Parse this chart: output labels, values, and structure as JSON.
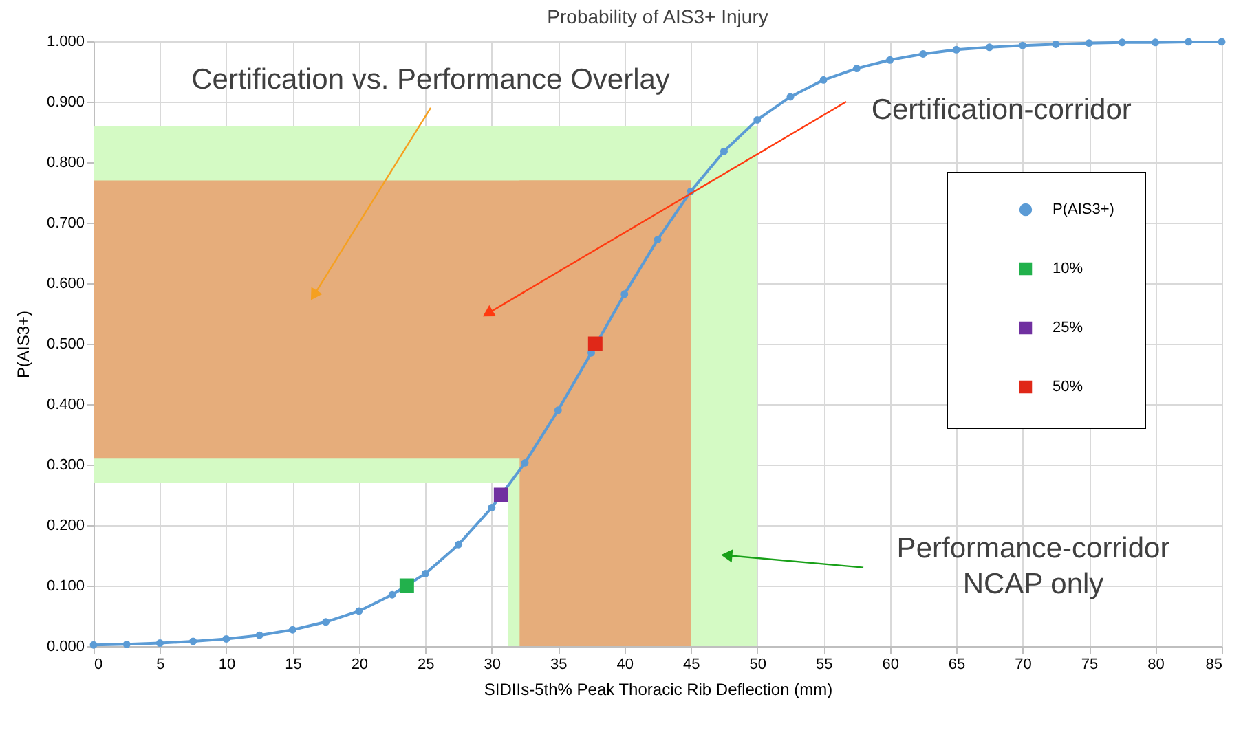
{
  "chart_data": {
    "type": "line",
    "title": "Probability of AIS3+ Injury",
    "xlabel": "SIDIIs-5th% Peak Thoracic Rib Deflection (mm)",
    "ylabel": "P(AIS3+)",
    "x": [
      0,
      2.5,
      5,
      7.5,
      10,
      12.5,
      15,
      17.5,
      20,
      22.5,
      25,
      27.5,
      30,
      32.5,
      35,
      37.5,
      40,
      42.5,
      45,
      47.5,
      50,
      52.5,
      55,
      57.5,
      60,
      62.5,
      65,
      67.5,
      70,
      72.5,
      75,
      77.5,
      80,
      82.5,
      85
    ],
    "series": [
      {
        "name": "P(AIS3+)",
        "color": "#5b9bd5",
        "values": [
          0.002,
          0.003,
          0.005,
          0.008,
          0.012,
          0.018,
          0.027,
          0.04,
          0.058,
          0.085,
          0.12,
          0.168,
          0.229,
          0.303,
          0.39,
          0.485,
          0.582,
          0.672,
          0.752,
          0.818,
          0.87,
          0.908,
          0.936,
          0.955,
          0.969,
          0.979,
          0.986,
          0.99,
          0.993,
          0.995,
          0.997,
          0.998,
          0.998,
          0.999,
          0.999
        ]
      },
      {
        "name": "10%",
        "type": "scatter",
        "marker": "square",
        "color": "#22b14c",
        "x": [
          23.6
        ],
        "values": [
          0.1
        ]
      },
      {
        "name": "25%",
        "type": "scatter",
        "marker": "square",
        "color": "#7030a0",
        "x": [
          30.7
        ],
        "values": [
          0.25
        ]
      },
      {
        "name": "50%",
        "type": "scatter",
        "marker": "square",
        "color": "#e02818",
        "x": [
          37.8
        ],
        "values": [
          0.5
        ]
      }
    ],
    "marker": "circle",
    "grid": true,
    "legend": "right",
    "xlim": [
      0,
      85
    ],
    "xticks": [
      0,
      5,
      10,
      15,
      20,
      25,
      30,
      35,
      40,
      45,
      50,
      55,
      60,
      65,
      70,
      75,
      80,
      85
    ],
    "ylim": [
      0,
      1
    ],
    "yticks": [
      {
        "value": 0,
        "label": "0.000"
      },
      {
        "value": 0.1,
        "label": "0.100"
      },
      {
        "value": 0.2,
        "label": "0.200"
      },
      {
        "value": 0.3,
        "label": "0.300"
      },
      {
        "value": 0.4,
        "label": "0.400"
      },
      {
        "value": 0.5,
        "label": "0.500"
      },
      {
        "value": 0.6,
        "label": "0.600"
      },
      {
        "value": 0.7,
        "label": "0.700"
      },
      {
        "value": 0.8,
        "label": "0.800"
      },
      {
        "value": 0.9,
        "label": "0.900"
      },
      {
        "value": 1,
        "label": "1.000"
      }
    ],
    "bands": [
      {
        "axis": "y",
        "from": 0.27,
        "to": 0.86,
        "color": "#d4fac4"
      },
      {
        "axis": "x",
        "from": 31.2,
        "to": 50,
        "color": "#d4fac4"
      },
      {
        "axis": "y",
        "from": 0.31,
        "to": 0.77,
        "color": "#e6ad7b"
      },
      {
        "axis": "x",
        "from": 32.1,
        "to": 45,
        "color": "#e6ad7b"
      }
    ],
    "annotations": [
      "Certification vs. Performance Overlay",
      "Certification-corridor",
      "Performance-corridor\nNCAP only"
    ]
  }
}
